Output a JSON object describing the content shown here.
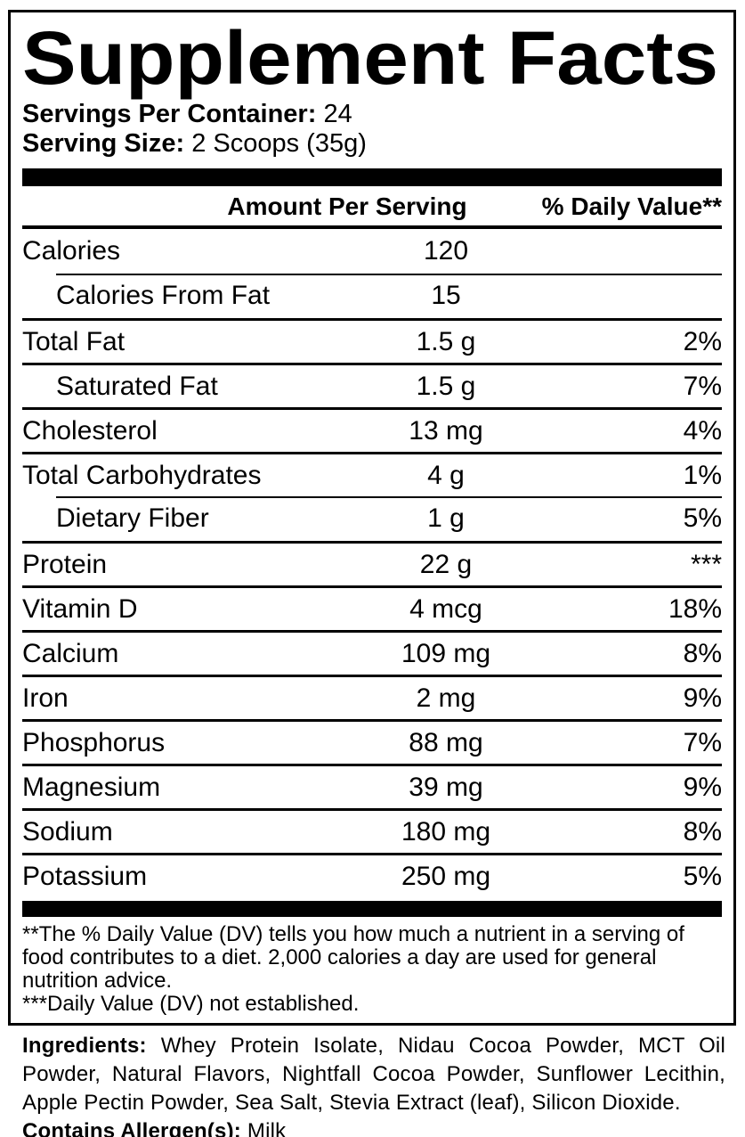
{
  "header": {
    "title": "Supplement Facts",
    "servings_per_container_label": "Servings Per Container:",
    "servings_per_container_value": "24",
    "serving_size_label": "Serving Size:",
    "serving_size_value": "2 Scoops (35g)"
  },
  "facts": {
    "columns": {
      "amount": "Amount Per Serving",
      "daily_value": "% Daily Value**"
    },
    "rows": [
      {
        "label": "Calories",
        "amount": "120",
        "dv": ""
      },
      {
        "label": "Calories From Fat",
        "amount": "15",
        "dv": ""
      },
      {
        "label": "Total Fat",
        "amount": "1.5 g",
        "dv": "2%"
      },
      {
        "label": "Saturated Fat",
        "amount": "1.5 g",
        "dv": "7%"
      },
      {
        "label": "Cholesterol",
        "amount": "13 mg",
        "dv": "4%"
      },
      {
        "label": "Total Carbohydrates",
        "amount": "4 g",
        "dv": "1%"
      },
      {
        "label": "Dietary Fiber",
        "amount": "1 g",
        "dv": "5%"
      },
      {
        "label": "Protein",
        "amount": "22 g",
        "dv": "***"
      },
      {
        "label": "Vitamin D",
        "amount": "4 mcg",
        "dv": "18%"
      },
      {
        "label": "Calcium",
        "amount": "109 mg",
        "dv": "8%"
      },
      {
        "label": "Iron",
        "amount": "2 mg",
        "dv": "9%"
      },
      {
        "label": "Phosphorus",
        "amount": "88 mg",
        "dv": "7%"
      },
      {
        "label": "Magnesium",
        "amount": "39 mg",
        "dv": "9%"
      },
      {
        "label": "Sodium",
        "amount": "180 mg",
        "dv": "8%"
      },
      {
        "label": "Potassium",
        "amount": "250 mg",
        "dv": "5%"
      }
    ]
  },
  "footnotes": {
    "daily_value_note": "**The % Daily Value (DV) tells you how much a nutrient in a serving of food contributes to a diet. 2,000 calories a day are used for general nutrition advice.",
    "not_established_note": "***Daily Value (DV) not established."
  },
  "ingredients": {
    "label": "Ingredients:",
    "list": "Whey Protein Isolate, Nidau Cocoa Powder, MCT Oil Powder, Natural Flavors, Nightfall Cocoa Powder, Sunflower Lecithin, Apple Pectin Powder, Sea Salt, Stevia Extract (leaf), Silicon Dioxide.",
    "allergen_label": "Contains Allergen(s):",
    "allergen_value": "Milk"
  },
  "colors": {
    "text": "#000000",
    "background": "#ffffff"
  }
}
